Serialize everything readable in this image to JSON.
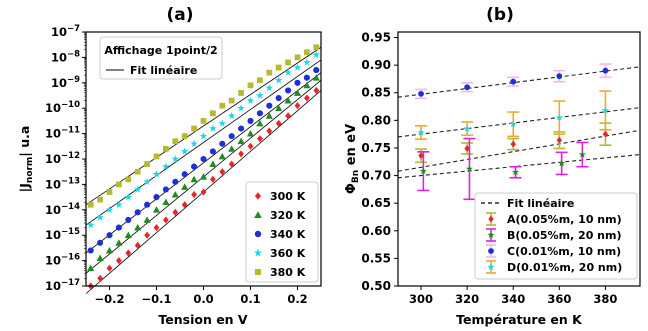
{
  "chart_data": [
    {
      "type": "scatter",
      "panel_label": "(a)",
      "xlabel": "Tension en V",
      "ylabel": "|J_norm| u.a",
      "ylabel_main": "|J",
      "ylabel_sub": "norm",
      "ylabel_tail": "| u.a",
      "xlim": [
        -0.25,
        0.25
      ],
      "ylim_log10": [
        -17,
        -7
      ],
      "yscale": "log",
      "grid": false,
      "xticks": [
        -0.2,
        -0.1,
        0.0,
        0.1,
        0.2
      ],
      "xtick_labels": [
        "−0.2",
        "−0.1",
        "0.0",
        "0.1",
        "0.2"
      ],
      "yticks_log10": [
        -17,
        -16,
        -15,
        -14,
        -13,
        -12,
        -11,
        -10,
        -9,
        -8,
        -7
      ],
      "ytick_base": "10",
      "ytick_exponents": [
        "−17",
        "−16",
        "−15",
        "−14",
        "−13",
        "−12",
        "−11",
        "−10",
        "−9",
        "−8",
        "−7"
      ],
      "info_box": {
        "title": "Affichage 1point/2",
        "fit_label": "Fit linéaire",
        "position": "top-left"
      },
      "legend_position": "bottom-right",
      "x": [
        -0.24,
        -0.22,
        -0.2,
        -0.18,
        -0.16,
        -0.14,
        -0.12,
        -0.1,
        -0.08,
        -0.06,
        -0.04,
        -0.02,
        0.0,
        0.02,
        0.04,
        0.06,
        0.08,
        0.1,
        0.12,
        0.14,
        0.16,
        0.18,
        0.2,
        0.22,
        0.24
      ],
      "series": [
        {
          "name": "300 K",
          "marker": "diamond",
          "color": "#e8262a",
          "fit_log10_at_xmin": -17.3,
          "fit_log10_at_xmax": -9.3,
          "log10_y": [
            -17.0,
            -16.7,
            -16.3,
            -16.0,
            -15.7,
            -15.4,
            -15.0,
            -14.7,
            -14.4,
            -14.1,
            -13.8,
            -13.4,
            -13.3,
            -12.8,
            -12.5,
            -12.2,
            -11.8,
            -11.5,
            -11.2,
            -10.9,
            -10.6,
            -10.3,
            -9.9,
            -9.6,
            -9.3
          ]
        },
        {
          "name": "320 K",
          "marker": "triangle",
          "color": "#218a21",
          "fit_log10_at_xmin": -16.5,
          "fit_log10_at_xmax": -8.9,
          "log10_y": [
            -16.3,
            -15.9,
            -15.6,
            -15.3,
            -15.0,
            -14.7,
            -14.4,
            -14.0,
            -13.7,
            -13.4,
            -13.1,
            -12.8,
            -12.7,
            -12.2,
            -11.9,
            -11.6,
            -11.3,
            -11.0,
            -10.6,
            -10.3,
            -10.0,
            -9.7,
            -9.4,
            -9.1,
            -8.8
          ]
        },
        {
          "name": "340 K",
          "marker": "circle",
          "color": "#1f2fd6",
          "fit_log10_at_xmin": -15.7,
          "fit_log10_at_xmax": -8.6,
          "log10_y": [
            -15.6,
            -15.3,
            -15.0,
            -14.7,
            -14.4,
            -14.1,
            -13.8,
            -13.5,
            -13.2,
            -12.9,
            -12.6,
            -12.3,
            -12.0,
            -11.7,
            -11.4,
            -11.1,
            -10.8,
            -10.5,
            -10.2,
            -9.9,
            -9.6,
            -9.3,
            -9.0,
            -8.8,
            -8.5
          ]
        },
        {
          "name": "360 K",
          "marker": "star",
          "color": "#1ad7e8",
          "fit_log10_at_xmin": -14.6,
          "fit_log10_at_xmax": -8.1,
          "log10_y": [
            -14.6,
            -14.3,
            -14.0,
            -13.8,
            -13.5,
            -13.2,
            -12.9,
            -12.6,
            -12.3,
            -12.0,
            -11.7,
            -11.4,
            -11.1,
            -10.8,
            -10.6,
            -10.3,
            -10.0,
            -9.7,
            -9.5,
            -9.2,
            -8.9,
            -8.6,
            -8.4,
            -8.2,
            -7.9
          ]
        },
        {
          "name": "380 K",
          "marker": "square",
          "color": "#b8b832",
          "fit_log10_at_xmin": -13.8,
          "fit_log10_at_xmax": -7.6,
          "log10_y": [
            -13.8,
            -13.6,
            -13.3,
            -13.0,
            -12.8,
            -12.5,
            -12.2,
            -11.9,
            -11.6,
            -11.3,
            -11.1,
            -10.8,
            -10.5,
            -10.2,
            -9.9,
            -9.7,
            -9.4,
            -9.1,
            -8.9,
            -8.6,
            -8.4,
            -8.2,
            -8.0,
            -7.8,
            -7.6
          ]
        }
      ]
    },
    {
      "type": "scatter",
      "panel_label": "(b)",
      "xlabel": "Température en K",
      "ylabel": "Φ_Bn en eV",
      "ylabel_main": "Φ",
      "ylabel_sub": "Bn",
      "ylabel_tail": " en eV",
      "xlim": [
        290,
        395
      ],
      "ylim": [
        0.5,
        0.96
      ],
      "grid": false,
      "xticks": [
        300,
        320,
        340,
        360,
        380
      ],
      "xtick_labels": [
        "300",
        "320",
        "340",
        "360",
        "380"
      ],
      "yticks": [
        0.5,
        0.55,
        0.6,
        0.65,
        0.7,
        0.75,
        0.8,
        0.85,
        0.9,
        0.95
      ],
      "ytick_labels": [
        "0.50",
        "0.55",
        "0.60",
        "0.65",
        "0.70",
        "0.75",
        "0.80",
        "0.85",
        "0.90",
        "0.95"
      ],
      "legend_position": "bottom-right",
      "fit_legend_label": "Fit linéaire",
      "fit_x_range": [
        290,
        395
      ],
      "series": [
        {
          "name": "A(0.05%m, 10 nm)",
          "marker": "diamond",
          "color": "#e8262a",
          "errcolor": "#b8b832",
          "x": [
            300,
            320,
            340,
            360,
            380
          ],
          "y": [
            0.736,
            0.749,
            0.757,
            0.764,
            0.775
          ],
          "err": [
            0.012,
            0.01,
            0.01,
            0.015,
            0.02
          ],
          "fit": [
            0.708,
            0.782
          ]
        },
        {
          "name": "B(0.05%m, 20 nm)",
          "marker": "star",
          "color": "#218a21",
          "errcolor": "#e020e0",
          "x": [
            301,
            321,
            341,
            361,
            370
          ],
          "y": [
            0.708,
            0.712,
            0.706,
            0.722,
            0.738
          ],
          "err": [
            0.035,
            0.055,
            0.01,
            0.02,
            0.022
          ],
          "fit": [
            0.696,
            0.738
          ]
        },
        {
          "name": "C(0.01%m, 10 nm)",
          "marker": "circle",
          "color": "#1f2fd6",
          "errcolor": "#f4b8e8",
          "x": [
            300,
            320,
            340,
            360,
            380
          ],
          "y": [
            0.848,
            0.86,
            0.87,
            0.88,
            0.89
          ],
          "err": [
            0.008,
            0.008,
            0.008,
            0.01,
            0.012
          ],
          "fit": [
            0.842,
            0.897
          ]
        },
        {
          "name": "D(0.01%m, 20 nm)",
          "marker": "star",
          "color": "#1ad7e8",
          "errcolor": "#f0a830",
          "x": [
            300,
            320,
            340,
            360,
            380
          ],
          "y": [
            0.778,
            0.785,
            0.793,
            0.805,
            0.818
          ],
          "err": [
            0.012,
            0.012,
            0.022,
            0.03,
            0.035
          ],
          "fit": [
            0.77,
            0.823
          ]
        }
      ]
    }
  ]
}
